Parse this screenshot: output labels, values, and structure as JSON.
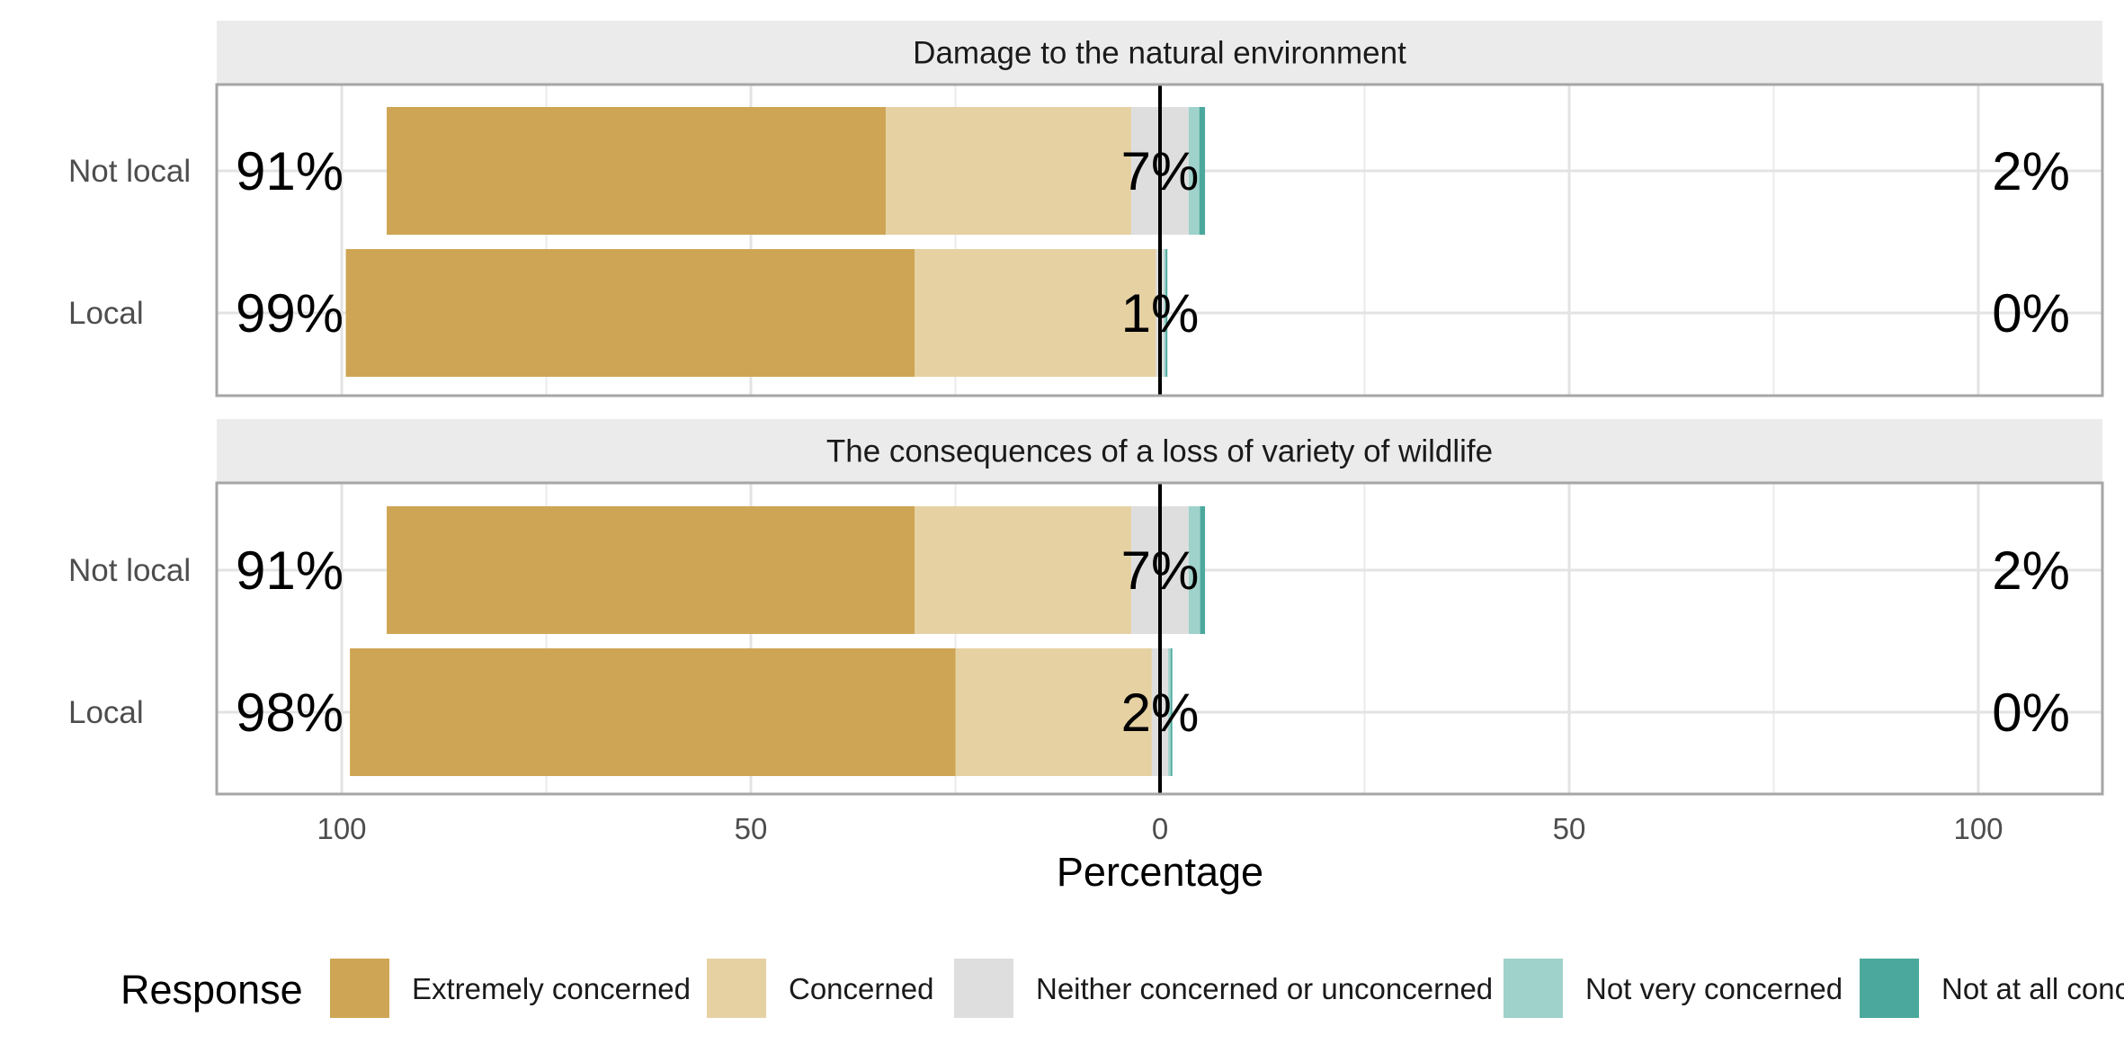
{
  "chart_data": {
    "type": "bar",
    "subtype": "diverging-stacked-horizontal",
    "xlabel": "Percentage",
    "x_ticks": [
      100,
      50,
      0,
      50,
      100
    ],
    "xlim": [
      -115,
      115
    ],
    "categories": [
      "Not local",
      "Local"
    ],
    "legend": {
      "title": "Response",
      "position": "bottom",
      "entries": [
        {
          "name": "Extremely concerned",
          "color": "#CEA554"
        },
        {
          "name": "Concerned",
          "color": "#E6D1A3"
        },
        {
          "name": "Neither concerned or unconcerned",
          "color": "#DEDEDE"
        },
        {
          "name": "Not very concerned",
          "color": "#9ED2CB"
        },
        {
          "name": "Not at all concerned",
          "color": "#4AA89C"
        }
      ]
    },
    "panels": [
      {
        "title": "Damage to the natural environment",
        "rows": [
          {
            "category": "Not local",
            "values": [
              61,
              30,
              7,
              1.3,
              0.7
            ],
            "left_label": "91%",
            "center_label": "7%",
            "right_label": "2%"
          },
          {
            "category": "Local",
            "values": [
              69.5,
              29.5,
              1,
              0.2,
              0.2
            ],
            "left_label": "99%",
            "center_label": "1%",
            "right_label": "0%"
          }
        ]
      },
      {
        "title": "The consequences of a loss of variety of wildlife",
        "rows": [
          {
            "category": "Not local",
            "values": [
              64.5,
              26.5,
              7,
              1.4,
              0.6
            ],
            "left_label": "91%",
            "center_label": "7%",
            "right_label": "2%"
          },
          {
            "category": "Local",
            "values": [
              74,
              24,
              2,
              0.3,
              0.2
            ],
            "left_label": "98%",
            "center_label": "2%",
            "right_label": "0%"
          }
        ]
      }
    ]
  }
}
